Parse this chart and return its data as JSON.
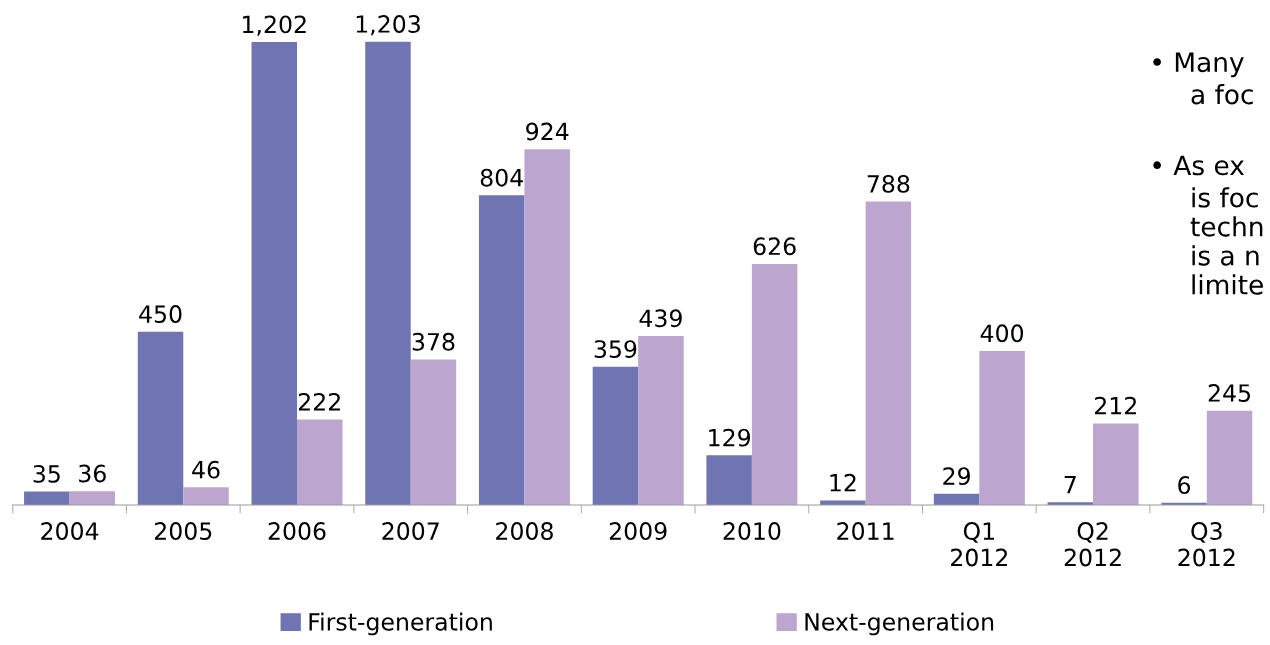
{
  "chart_data": {
    "type": "bar",
    "categories": [
      "2004",
      "2005",
      "2006",
      "2007",
      "2008",
      "2009",
      "2010",
      "2011",
      "Q1\n2012",
      "Q2\n2012",
      "Q3\n2012"
    ],
    "series": [
      {
        "name": "First-generation",
        "color": "#6f75b3",
        "values": [
          35,
          450,
          1202,
          1203,
          804,
          359,
          129,
          12,
          29,
          7,
          6
        ],
        "value_labels": [
          "35",
          "450",
          "1,202",
          "1,203",
          "804",
          "359",
          "129",
          "12",
          "29",
          "7",
          "6"
        ]
      },
      {
        "name": "Next-generation",
        "color": "#bca6cf",
        "values": [
          36,
          46,
          222,
          378,
          924,
          439,
          626,
          788,
          400,
          212,
          245
        ],
        "value_labels": [
          "36",
          "46",
          "222",
          "378",
          "924",
          "439",
          "626",
          "788",
          "400",
          "212",
          "245"
        ]
      }
    ],
    "tick_labels": "x",
    "grid": false,
    "legend": "bottom",
    "annotations": [
      "• Many",
      "a foc",
      "• As ex",
      "is foc",
      "techn",
      "is a n",
      "limite"
    ]
  }
}
